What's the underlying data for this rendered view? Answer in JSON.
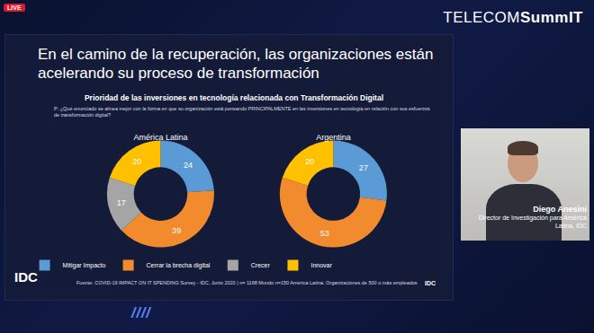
{
  "page": {
    "live": "LIVE",
    "brand_left": "TELECOM",
    "brand_right": "SummIT",
    "slide_title": "En el camino de la recuperación, las organizaciones están acelerando su proceso de transformación",
    "chart_heading": "Prioridad de las inversiones en tecnología relacionada con Transformación Digital",
    "question": "P: ¿Qué enunciado se alinea mejor con la forma en que su organización está pensando PRINCIPALMENTE en las inversiones en tecnología en relación con sus esfuerzos de transformación digital?",
    "source": "Fuente: COVID-19 IMPACT ON IT SPENDING Survey - IDC, Junio 2020 | n= 1168 Mundo n=150 América Latina. Organizaciones de 500 o más empleados",
    "logo": "IDC",
    "logo_small": "IDC",
    "speaker_name": "Diego Anesini",
    "speaker_role": "Director de Investigación para América Latina, IDC",
    "footer": "////"
  },
  "chart_data": [
    {
      "type": "donut",
      "title": "América Latina",
      "categories": [
        "Mitigar Impacto",
        "Cerrar la brecha digital",
        "Crecer",
        "Innovar"
      ],
      "values": [
        24,
        39,
        17,
        20
      ],
      "colors": [
        "#5b9bd5",
        "#f28a2e",
        "#a5a5a5",
        "#ffc000"
      ],
      "data_labels": true,
      "legend": "bottom"
    },
    {
      "type": "donut",
      "title": "Argentina",
      "categories": [
        "Mitigar Impacto",
        "Cerrar la brecha digital",
        "Innovar"
      ],
      "values": [
        27,
        53,
        20
      ],
      "colors": [
        "#5b9bd5",
        "#f28a2e",
        "#ffc000"
      ],
      "data_labels": true
    }
  ]
}
